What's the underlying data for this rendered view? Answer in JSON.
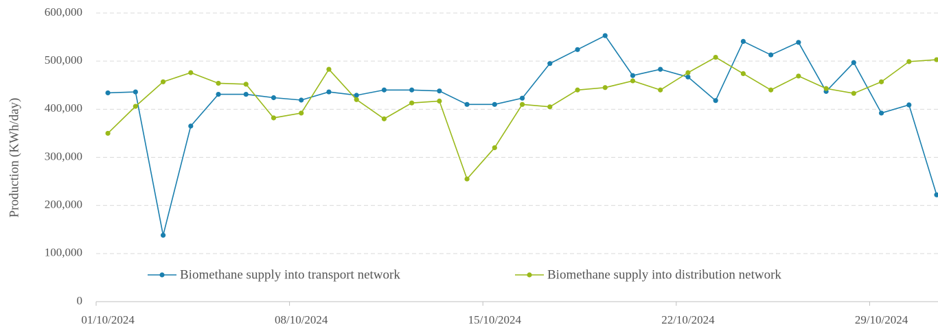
{
  "chart_data": {
    "type": "line",
    "y_label": "Production (KWh/day)",
    "categories": [
      "01/10/2024",
      null,
      null,
      null,
      null,
      null,
      null,
      "08/10/2024",
      null,
      null,
      null,
      null,
      null,
      null,
      "15/10/2024",
      null,
      null,
      null,
      null,
      null,
      null,
      "22/10/2024",
      null,
      null,
      null,
      null,
      null,
      null,
      "29/10/2024",
      null,
      null
    ],
    "series": [
      {
        "name": "Biomethane supply into transport network",
        "color": "#1a7fae",
        "values": [
          434000,
          436000,
          138000,
          365000,
          431000,
          431000,
          424000,
          419000,
          436000,
          429000,
          440000,
          440000,
          438000,
          410000,
          410000,
          423000,
          495000,
          524000,
          553000,
          470000,
          483000,
          467000,
          418000,
          541000,
          513000,
          539000,
          437000,
          497000,
          392000,
          409000,
          222000
        ]
      },
      {
        "name": "Biomethane supply into distribution network",
        "color": "#9ab91a",
        "values": [
          350000,
          406000,
          457000,
          476000,
          454000,
          452000,
          382000,
          392000,
          483000,
          420000,
          380000,
          413000,
          417000,
          255000,
          320000,
          410000,
          405000,
          440000,
          445000,
          459000,
          440000,
          476000,
          508000,
          474000,
          440000,
          469000,
          443000,
          433000,
          457000,
          499000,
          503000
        ]
      }
    ],
    "ylim": [
      0,
      600000
    ],
    "yticks": [
      0,
      {
        "value": 100000,
        "label": "100,000"
      },
      {
        "value": 200000,
        "label": "200,000"
      },
      {
        "value": 300000,
        "label": "300,000"
      },
      {
        "value": 400000,
        "label": "400,000"
      },
      {
        "value": 500000,
        "label": "500,000"
      },
      {
        "value": 600000,
        "label": "600,000"
      }
    ],
    "grid": true
  }
}
